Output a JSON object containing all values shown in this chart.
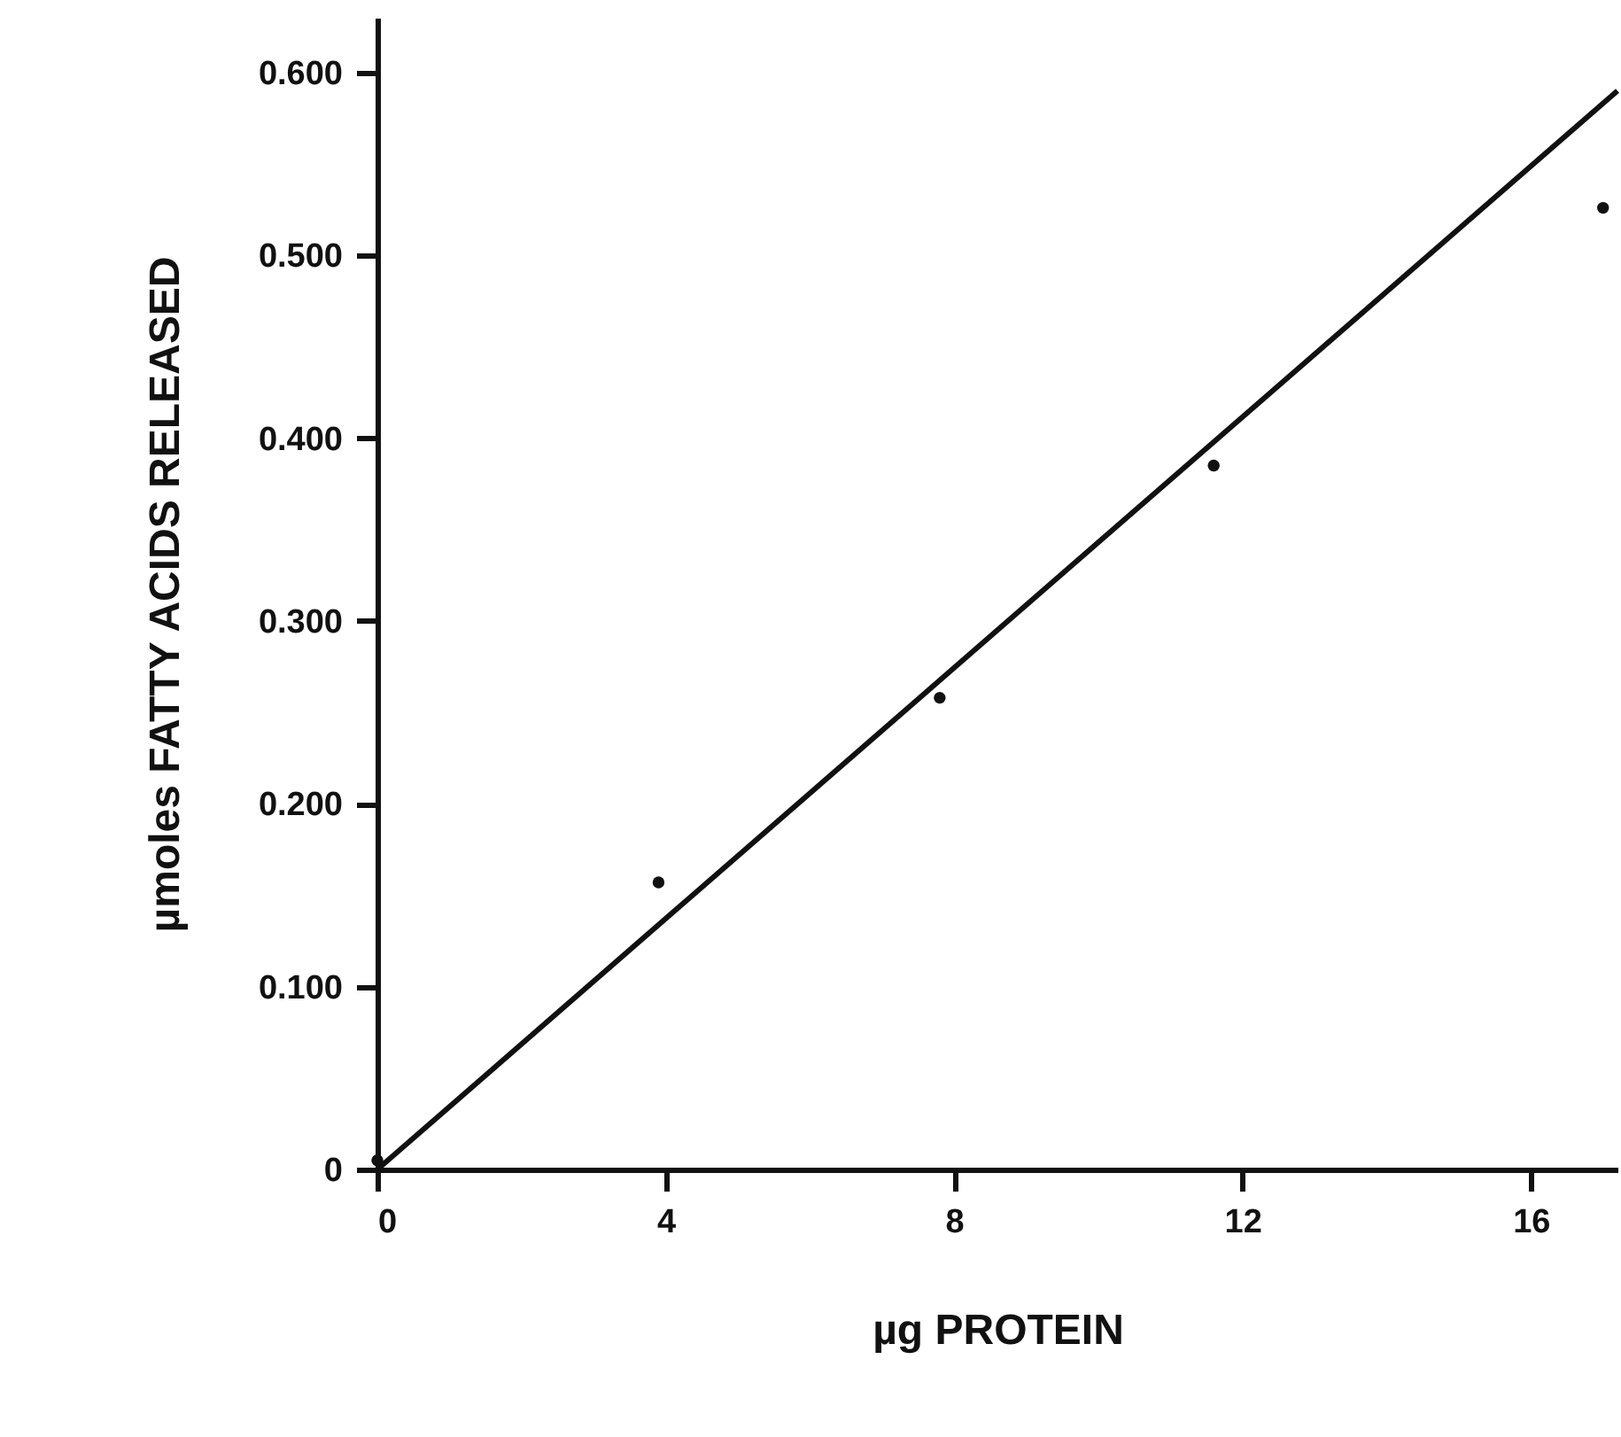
{
  "chart_data": {
    "type": "scatter",
    "xlabel": "µg PROTEIN",
    "ylabel": "µmoles FATTY ACIDS RELEASED",
    "x": [
      0,
      3.9,
      7.8,
      11.6,
      17.0
    ],
    "series": [
      {
        "type": "scatter",
        "color": "#111111",
        "marker": "circle",
        "values": [
          0.005,
          0.157,
          0.258,
          0.385,
          0.526
        ]
      },
      {
        "type": "line",
        "color": "#111111",
        "marker": "none",
        "line_style": "solid",
        "x": [
          0,
          17.2
        ],
        "values": [
          0,
          0.59
        ]
      }
    ],
    "xlim": [
      0,
      17.2
    ],
    "ylim": [
      0,
      0.63
    ],
    "xticks": [
      0,
      4,
      8,
      12,
      16
    ],
    "yticks": [
      0,
      {
        "value": 0.1,
        "label": "0.100"
      },
      {
        "value": 0.2,
        "label": "0.200"
      },
      {
        "value": 0.3,
        "label": "0.300"
      },
      {
        "value": 0.4,
        "label": "0.400"
      },
      {
        "value": 0.5,
        "label": "0.500"
      },
      {
        "value": 0.6,
        "label": "0.600"
      }
    ],
    "grid": false
  }
}
